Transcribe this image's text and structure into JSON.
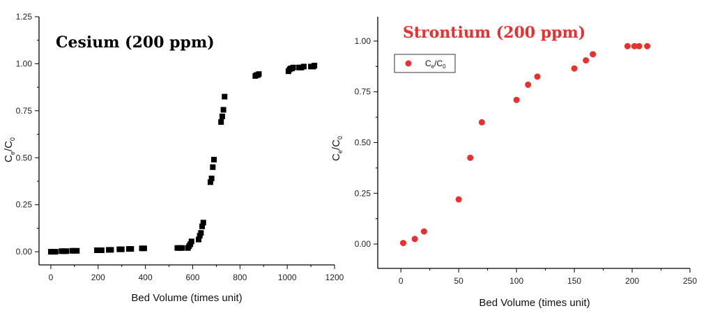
{
  "chart_data": [
    {
      "type": "scatter",
      "title": "Cesium (200 ppm)",
      "xlabel": "Bed Volume (times unit)",
      "ylabel": {
        "main": "C",
        "sub1": "e",
        "sep": "/C",
        "sub2": "0"
      },
      "xlim": [
        -50,
        1200
      ],
      "ylim": [
        -0.07,
        1.25
      ],
      "xticks": [
        0,
        200,
        400,
        600,
        800,
        1000,
        1200
      ],
      "yticks": [
        0.0,
        0.25,
        0.5,
        0.75,
        1.0,
        1.25
      ],
      "xtick_labels": [
        "0",
        "200",
        "400",
        "600",
        "800",
        "1000",
        "1200"
      ],
      "ytick_labels": [
        "0.00",
        "0.25",
        "0.50",
        "0.75",
        "1.00",
        "1.25"
      ],
      "marker": "square",
      "title_color": "#000000",
      "color": "#000000",
      "series": [
        {
          "name": "Ce/C0",
          "x": [
            0,
            10,
            20,
            45,
            55,
            65,
            90,
            100,
            110,
            195,
            205,
            215,
            245,
            255,
            290,
            300,
            330,
            340,
            385,
            395,
            535,
            545,
            555,
            580,
            585,
            590,
            595,
            625,
            630,
            635,
            640,
            645,
            675,
            680,
            685,
            690,
            720,
            725,
            730,
            735,
            865,
            870,
            875,
            880,
            1005,
            1010,
            1015,
            1020,
            1025,
            1050,
            1060,
            1070,
            1100,
            1105,
            1110,
            1115
          ],
          "y": [
            0.0,
            0.0,
            0.0,
            0.003,
            0.003,
            0.003,
            0.005,
            0.005,
            0.005,
            0.008,
            0.008,
            0.008,
            0.01,
            0.01,
            0.013,
            0.013,
            0.015,
            0.015,
            0.018,
            0.018,
            0.02,
            0.02,
            0.02,
            0.02,
            0.03,
            0.04,
            0.055,
            0.065,
            0.085,
            0.1,
            0.135,
            0.155,
            0.37,
            0.39,
            0.45,
            0.49,
            0.69,
            0.72,
            0.755,
            0.825,
            0.935,
            0.94,
            0.94,
            0.945,
            0.96,
            0.97,
            0.975,
            0.975,
            0.98,
            0.98,
            0.98,
            0.985,
            0.985,
            0.985,
            0.985,
            0.99
          ]
        }
      ]
    },
    {
      "type": "scatter",
      "title": "Strontium (200 ppm)",
      "xlabel": "Bed Volume (times unit)",
      "ylabel": {
        "main": "C",
        "sub1": "e",
        "sep": "/C",
        "sub2": "0"
      },
      "xlim": [
        -20,
        250
      ],
      "ylim": [
        -0.12,
        1.12
      ],
      "xticks": [
        0,
        50,
        100,
        150,
        200,
        250
      ],
      "yticks": [
        0.0,
        0.25,
        0.5,
        0.75,
        1.0
      ],
      "xtick_labels": [
        "0",
        "50",
        "100",
        "150",
        "200",
        "250"
      ],
      "ytick_labels": [
        "0.00",
        "0.25",
        "0.50",
        "0.75",
        "1.00"
      ],
      "marker": "circle",
      "title_color": "#e8312f",
      "color": "#e8312f",
      "legend": {
        "position": "top-left",
        "main": "C",
        "sub1": "e",
        "sep": "/C",
        "sub2": "0"
      },
      "series": [
        {
          "name": "Ce/C0",
          "x": [
            2,
            12,
            20,
            50,
            60,
            70,
            100,
            110,
            118,
            150,
            160,
            166,
            196,
            202,
            206,
            213
          ],
          "y": [
            0.005,
            0.025,
            0.062,
            0.22,
            0.425,
            0.6,
            0.71,
            0.785,
            0.825,
            0.865,
            0.905,
            0.935,
            0.975,
            0.975,
            0.975,
            0.975
          ]
        }
      ]
    }
  ]
}
